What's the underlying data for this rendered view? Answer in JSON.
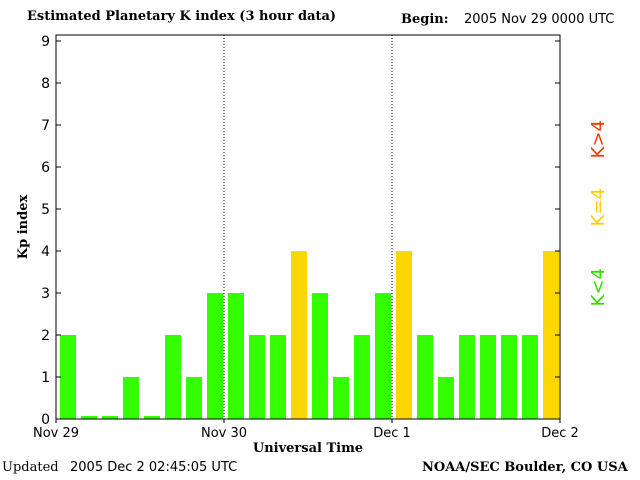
{
  "header": {
    "title": "Estimated Planetary K index (3 hour data)",
    "begin_label": "Begin:",
    "begin_value": "2005 Nov 29 0000 UTC"
  },
  "footer": {
    "updated_label": "Updated",
    "updated_value": "2005 Dec  2 02:45:05 UTC",
    "credit": "NOAA/SEC Boulder, CO USA"
  },
  "legend": {
    "gt": "K>4",
    "eq": "K=4",
    "lt": "K<4"
  },
  "colors": {
    "low": "#33ff00",
    "storm": "#ffd700",
    "high": "#ff3300"
  },
  "chart_data": {
    "type": "bar",
    "xlabel": "Universal Time",
    "ylabel": "Kp index",
    "ylim": [
      0,
      9
    ],
    "yticks": [
      "0",
      "1",
      "2",
      "3",
      "4",
      "5",
      "6",
      "7",
      "8",
      "9"
    ],
    "xticks": [
      "Nov 29",
      "Nov 30",
      "Dec 1",
      "Dec 2"
    ],
    "values": [
      2,
      0,
      0,
      1,
      0,
      2,
      1,
      3,
      3,
      2,
      2,
      4,
      3,
      1,
      2,
      3,
      4,
      2,
      1,
      2,
      2,
      2,
      2,
      4
    ]
  }
}
